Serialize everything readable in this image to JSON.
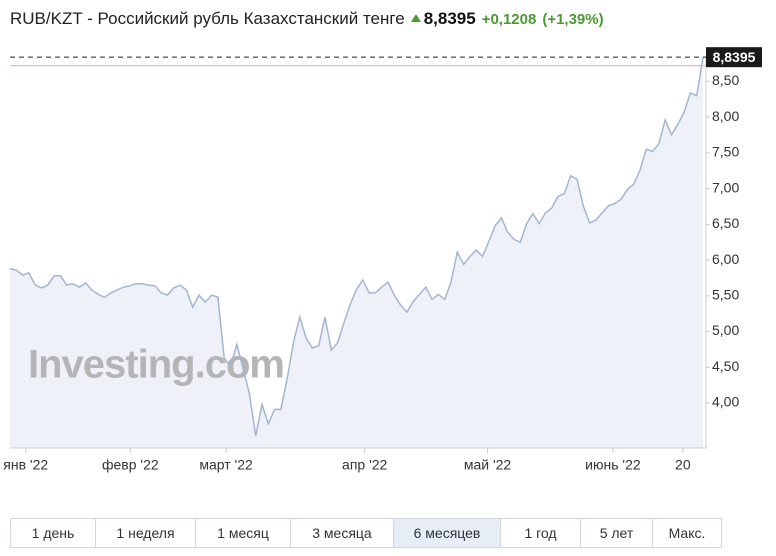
{
  "chart_data": {
    "type": "area",
    "title": "RUB/KZT - Российский рубль Казахстанский тенге",
    "price": "8,8395",
    "change": "+0,1208",
    "change_pct": "(+1,39%)",
    "watermark": "Investing.com",
    "color": "#a3b6d1",
    "fill": "#eef1f8",
    "last_value": 8.8395,
    "last_value_label": "8,8395",
    "previous_close": 8.7187,
    "values": [
      5.88,
      5.86,
      5.79,
      5.82,
      5.65,
      5.61,
      5.65,
      5.78,
      5.78,
      5.65,
      5.67,
      5.62,
      5.68,
      5.58,
      5.52,
      5.48,
      5.54,
      5.58,
      5.62,
      5.64,
      5.67,
      5.67,
      5.65,
      5.64,
      5.54,
      5.51,
      5.61,
      5.65,
      5.58,
      5.34,
      5.51,
      5.41,
      5.51,
      5.48,
      4.63,
      4.51,
      4.82,
      4.48,
      4.13,
      3.54,
      3.98,
      3.71,
      3.91,
      3.91,
      4.34,
      4.85,
      5.2,
      4.91,
      4.77,
      4.8,
      5.2,
      4.74,
      4.84,
      5.12,
      5.38,
      5.59,
      5.72,
      5.54,
      5.54,
      5.62,
      5.69,
      5.51,
      5.37,
      5.27,
      5.42,
      5.52,
      5.62,
      5.45,
      5.52,
      5.45,
      5.69,
      6.11,
      5.94,
      6.05,
      6.14,
      6.05,
      6.26,
      6.48,
      6.59,
      6.39,
      6.29,
      6.25,
      6.51,
      6.65,
      6.51,
      6.66,
      6.73,
      6.89,
      6.93,
      7.18,
      7.13,
      6.76,
      6.52,
      6.56,
      6.66,
      6.76,
      6.79,
      6.85,
      6.99,
      7.06,
      7.26,
      7.55,
      7.52,
      7.63,
      7.96,
      7.75,
      7.9,
      8.07,
      8.34,
      8.3,
      8.8395
    ],
    "xlim": [
      0,
      110
    ],
    "xticks": [
      {
        "value": 2.5,
        "label": "янв '22"
      },
      {
        "value": 19.1,
        "label": "февр '22"
      },
      {
        "value": 34.3,
        "label": "март '22"
      },
      {
        "value": 56.3,
        "label": "апр '22"
      },
      {
        "value": 75.8,
        "label": "май '22"
      },
      {
        "value": 95.7,
        "label": "июнь '22"
      },
      {
        "value": 106.8,
        "label": "20"
      }
    ],
    "ylim": [
      3.37,
      8.87
    ],
    "yticks": [
      {
        "value": 4,
        "label": "4,00"
      },
      {
        "value": 4.5,
        "label": "4,50"
      },
      {
        "value": 5,
        "label": "5,00"
      },
      {
        "value": 5.5,
        "label": "5,50"
      },
      {
        "value": 6,
        "label": "6,00"
      },
      {
        "value": 6.5,
        "label": "6,50"
      },
      {
        "value": 7,
        "label": "7,00"
      },
      {
        "value": 7.5,
        "label": "7,50"
      },
      {
        "value": 8,
        "label": "8,00"
      },
      {
        "value": 8.5,
        "label": "8,50"
      }
    ],
    "range_buttons": [
      "1 день",
      "1 неделя",
      "1 месяц",
      "3 месяца",
      "6 месяцев",
      "1 год",
      "5 лет",
      "Макс."
    ],
    "active_range": 4
  }
}
